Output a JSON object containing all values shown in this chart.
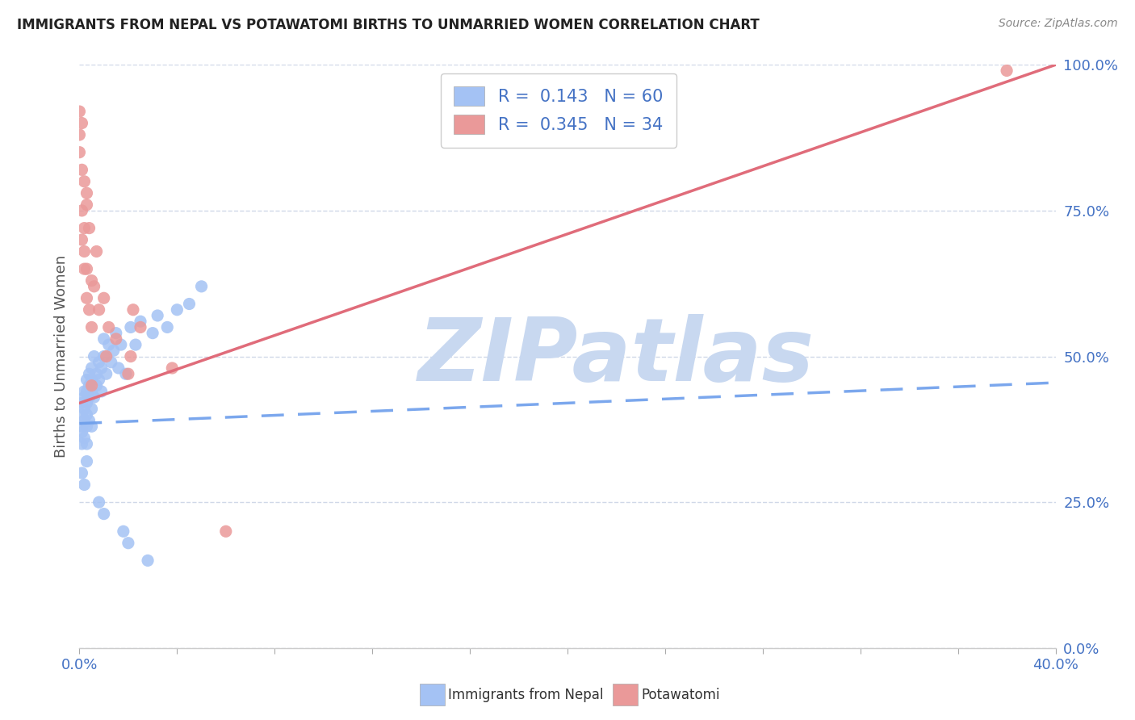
{
  "title": "IMMIGRANTS FROM NEPAL VS POTAWATOMI BIRTHS TO UNMARRIED WOMEN CORRELATION CHART",
  "source_text": "Source: ZipAtlas.com",
  "ylabel": "Births to Unmarried Women",
  "xlim": [
    0.0,
    0.4
  ],
  "ylim": [
    0.0,
    1.0
  ],
  "xticks": [
    0.0,
    0.04,
    0.08,
    0.12,
    0.16,
    0.2,
    0.24,
    0.28,
    0.32,
    0.36,
    0.4
  ],
  "ytick_labels_right": [
    "0.0%",
    "25.0%",
    "50.0%",
    "75.0%",
    "100.0%"
  ],
  "ytick_positions_right": [
    0.0,
    0.25,
    0.5,
    0.75,
    1.0
  ],
  "R1": 0.143,
  "N1": 60,
  "R2": 0.345,
  "N2": 34,
  "blue_color": "#a4c2f4",
  "pink_color": "#ea9999",
  "trend_blue_color": "#6d9eeb",
  "trend_pink_color": "#e06c7a",
  "text_color_blue": "#4472c4",
  "watermark": "ZIPatlas",
  "watermark_color": "#c8d8f0",
  "background_color": "#ffffff",
  "grid_color": "#d0d8e8",
  "legend_box_color": "#cccccc",
  "source_color": "#888888",
  "ylabel_color": "#555555",
  "title_color": "#222222",
  "blue_x": [
    0.001,
    0.001,
    0.001,
    0.001,
    0.001,
    0.002,
    0.002,
    0.002,
    0.002,
    0.002,
    0.003,
    0.003,
    0.003,
    0.003,
    0.003,
    0.003,
    0.004,
    0.004,
    0.004,
    0.004,
    0.005,
    0.005,
    0.005,
    0.005,
    0.005,
    0.006,
    0.006,
    0.007,
    0.007,
    0.008,
    0.008,
    0.009,
    0.009,
    0.01,
    0.01,
    0.011,
    0.012,
    0.013,
    0.014,
    0.015,
    0.016,
    0.017,
    0.019,
    0.021,
    0.023,
    0.025,
    0.03,
    0.032,
    0.036,
    0.04,
    0.045,
    0.05,
    0.001,
    0.002,
    0.003,
    0.008,
    0.01,
    0.018,
    0.02,
    0.028
  ],
  "blue_y": [
    0.38,
    0.4,
    0.37,
    0.42,
    0.35,
    0.43,
    0.39,
    0.36,
    0.41,
    0.44,
    0.38,
    0.42,
    0.46,
    0.4,
    0.35,
    0.44,
    0.45,
    0.39,
    0.43,
    0.47,
    0.41,
    0.46,
    0.38,
    0.44,
    0.48,
    0.5,
    0.43,
    0.45,
    0.47,
    0.46,
    0.49,
    0.44,
    0.48,
    0.5,
    0.53,
    0.47,
    0.52,
    0.49,
    0.51,
    0.54,
    0.48,
    0.52,
    0.47,
    0.55,
    0.52,
    0.56,
    0.54,
    0.57,
    0.55,
    0.58,
    0.59,
    0.62,
    0.3,
    0.28,
    0.32,
    0.25,
    0.23,
    0.2,
    0.18,
    0.15
  ],
  "pink_x": [
    0.0,
    0.0,
    0.0,
    0.001,
    0.001,
    0.001,
    0.001,
    0.002,
    0.002,
    0.002,
    0.003,
    0.003,
    0.003,
    0.004,
    0.004,
    0.005,
    0.005,
    0.006,
    0.007,
    0.008,
    0.01,
    0.011,
    0.012,
    0.015,
    0.02,
    0.022,
    0.025,
    0.038,
    0.005,
    0.002,
    0.003,
    0.021,
    0.06,
    0.38
  ],
  "pink_y": [
    0.92,
    0.88,
    0.85,
    0.9,
    0.82,
    0.75,
    0.7,
    0.72,
    0.65,
    0.68,
    0.6,
    0.65,
    0.78,
    0.58,
    0.72,
    0.55,
    0.63,
    0.62,
    0.68,
    0.58,
    0.6,
    0.5,
    0.55,
    0.53,
    0.47,
    0.58,
    0.55,
    0.48,
    0.45,
    0.8,
    0.76,
    0.5,
    0.2,
    0.99
  ],
  "blue_line_x": [
    0.0,
    0.4
  ],
  "blue_line_y": [
    0.385,
    0.455
  ],
  "pink_line_x": [
    0.0,
    0.4
  ],
  "pink_line_y": [
    0.42,
    1.0
  ]
}
